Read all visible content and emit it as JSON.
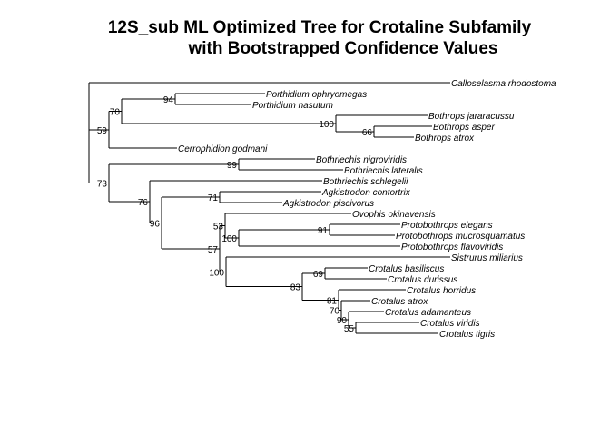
{
  "title_line1": "12S_sub ML Optimized Tree for Crotaline Subfamily",
  "title_line2": "with Bootstrapped Confidence Values",
  "tree": {
    "name": "root",
    "children": [
      {
        "name": "Calloselasma rhodostoma"
      },
      {
        "name": "n-A",
        "support": "59",
        "children": [
          {
            "name": "n-B",
            "support": "70",
            "children": [
              {
                "name": "n-Porth",
                "support": "94",
                "children": [
                  {
                    "name": "Porthidium ophryomegas"
                  },
                  {
                    "name": "Porthidium nasutum"
                  }
                ]
              },
              {
                "name": "n-Both",
                "support": "100",
                "children": [
                  {
                    "name": "Bothrops jararacussu"
                  },
                  {
                    "name": "n-Both2",
                    "support": "66",
                    "children": [
                      {
                        "name": "Bothrops asper"
                      },
                      {
                        "name": "Bothrops atrox"
                      }
                    ]
                  }
                ]
              }
            ]
          },
          {
            "name": "Cerrophidion godmani"
          }
        ]
      },
      {
        "name": "n-C",
        "support": "73",
        "children": [
          {
            "name": "n-Bothriechis",
            "support": "99",
            "children": [
              {
                "name": "Bothriechis nigroviridis"
              },
              {
                "name": "Bothriechis lateralis"
              }
            ]
          },
          {
            "name": "n-D",
            "support": "76",
            "children": [
              {
                "name": "Bothriechis schlegelii"
              },
              {
                "name": "n-E",
                "support": "96",
                "children": [
                  {
                    "name": "n-Agk",
                    "support": "71",
                    "children": [
                      {
                        "name": "Agkistrodon contortrix"
                      },
                      {
                        "name": "Agkistrodon piscivorus"
                      }
                    ]
                  },
                  {
                    "name": "n-F",
                    "support": "57",
                    "children": [
                      {
                        "name": "n-G",
                        "support": "53",
                        "children": [
                          {
                            "name": "Ovophis okinavensis"
                          },
                          {
                            "name": "n-Proto",
                            "support": "100",
                            "children": [
                              {
                                "name": "n-Proto2",
                                "support": "91",
                                "children": [
                                  {
                                    "name": "Protobothrops elegans"
                                  },
                                  {
                                    "name": "Protobothrops mucrosquamatus"
                                  }
                                ]
                              },
                              {
                                "name": "Protobothrops flavoviridis"
                              }
                            ]
                          }
                        ]
                      },
                      {
                        "name": "n-H",
                        "support": "100",
                        "children": [
                          {
                            "name": "Sistrurus miliarius"
                          },
                          {
                            "name": "n-I",
                            "support": "83",
                            "children": [
                              {
                                "name": "n-J",
                                "support": "69",
                                "children": [
                                  {
                                    "name": "Crotalus basiliscus"
                                  },
                                  {
                                    "name": "Crotalus durissus"
                                  }
                                ]
                              },
                              {
                                "name": "n-K",
                                "support": "81",
                                "children": [
                                  {
                                    "name": "Crotalus horridus"
                                  },
                                  {
                                    "name": "n-L",
                                    "support": "70",
                                    "children": [
                                      {
                                        "name": "Crotalus atrox"
                                      },
                                      {
                                        "name": "n-M",
                                        "support": "90",
                                        "children": [
                                          {
                                            "name": "Crotalus adamanteus"
                                          },
                                          {
                                            "name": "n-N",
                                            "support": "55",
                                            "children": [
                                              {
                                                "name": "Crotalus viridis"
                                              },
                                              {
                                                "name": "Crotalus tigris"
                                              }
                                            ]
                                          }
                                        ]
                                      }
                                    ]
                                  }
                                ]
                              }
                            ]
                          }
                        ]
                      }
                    ]
                  }
                ]
              }
            ]
          }
        ]
      }
    ]
  }
}
